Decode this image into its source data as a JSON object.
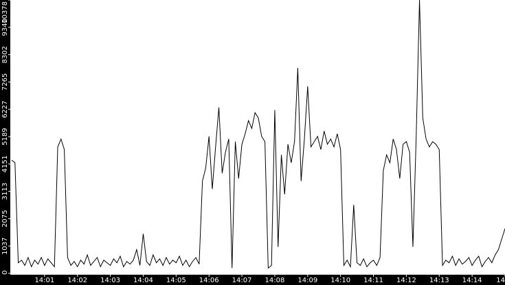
{
  "chart_data": {
    "type": "line",
    "color": "#000000",
    "x": [
      0,
      0.1,
      0.2,
      0.3,
      0.4,
      0.5,
      0.6,
      0.7,
      0.8,
      0.9,
      1,
      1.1,
      1.2,
      1.3,
      1.4,
      1.5,
      1.6,
      1.7,
      1.8,
      1.9,
      2,
      2.1,
      2.2,
      2.3,
      2.4,
      2.5,
      2.6,
      2.7,
      2.8,
      2.9,
      3,
      3.1,
      3.2,
      3.3,
      3.4,
      3.5,
      3.6,
      3.7,
      3.8,
      3.9,
      4,
      4.1,
      4.2,
      4.3,
      4.4,
      4.5,
      4.6,
      4.7,
      4.8,
      4.9,
      5,
      5.1,
      5.2,
      5.3,
      5.4,
      5.5,
      5.6,
      5.7,
      5.8,
      5.9,
      6,
      6.1,
      6.2,
      6.3,
      6.4,
      6.5,
      6.6,
      6.7,
      6.8,
      6.9,
      7,
      7.1,
      7.2,
      7.3,
      7.4,
      7.5,
      7.6,
      7.7,
      7.8,
      7.9,
      8,
      8.1,
      8.2,
      8.3,
      8.4,
      8.5,
      8.6,
      8.7,
      8.8,
      8.9,
      9,
      9.1,
      9.2,
      9.3,
      9.4,
      9.5,
      9.6,
      9.7,
      9.8,
      9.9,
      10,
      10.1,
      10.2,
      10.3,
      10.4,
      10.5,
      10.6,
      10.7,
      10.8,
      10.9,
      11,
      11.1,
      11.2,
      11.3,
      11.4,
      11.5,
      11.6,
      11.7,
      11.8,
      11.9,
      12,
      12.1,
      12.2,
      12.3,
      12.4,
      12.5,
      12.6,
      12.7,
      12.8,
      12.9,
      13,
      13.1,
      13.2,
      13.3,
      13.4,
      13.5,
      13.6,
      13.7,
      13.8,
      13.9,
      14,
      14.1,
      14.2,
      14.3,
      14.4,
      14.5,
      14.6,
      14.7,
      14.8,
      14.9,
      15
    ],
    "values": [
      4300,
      4200,
      400,
      500,
      300,
      600,
      250,
      500,
      350,
      600,
      300,
      550,
      400,
      250,
      4800,
      5100,
      4700,
      600,
      300,
      450,
      250,
      500,
      350,
      700,
      300,
      450,
      600,
      250,
      500,
      400,
      300,
      550,
      400,
      650,
      250,
      450,
      350,
      500,
      900,
      300,
      1500,
      450,
      300,
      700,
      400,
      550,
      300,
      600,
      350,
      500,
      400,
      650,
      300,
      500,
      250,
      450,
      600,
      350,
      3500,
      4000,
      5200,
      3200,
      4800,
      6300,
      3800,
      4600,
      5100,
      200,
      5000,
      3600,
      4900,
      5300,
      5800,
      5500,
      6100,
      5900,
      5200,
      5000,
      200,
      300,
      6200,
      1000,
      4500,
      3000,
      4900,
      4200,
      5000,
      7800,
      3500,
      5100,
      7100,
      4800,
      5000,
      5200,
      4700,
      5400,
      4900,
      5100,
      4800,
      5300,
      4700,
      300,
      500,
      250,
      2600,
      400,
      300,
      550,
      250,
      400,
      500,
      300,
      600,
      3900,
      4500,
      4200,
      5100,
      4700,
      3600,
      4900,
      5000,
      4600,
      1000,
      5200,
      10378,
      5900,
      5100,
      4800,
      5000,
      4900,
      4700,
      300,
      500,
      400,
      650,
      300,
      550,
      350,
      450,
      600,
      300,
      500,
      650,
      250,
      450,
      600,
      400,
      700,
      900,
      1300,
      1700
    ],
    "xlim": [
      0,
      15
    ],
    "xticks": [
      {
        "value": 1,
        "label": "14:01"
      },
      {
        "value": 2,
        "label": "14:02"
      },
      {
        "value": 3,
        "label": "14:03"
      },
      {
        "value": 4,
        "label": "14:04"
      },
      {
        "value": 5,
        "label": "14:05"
      },
      {
        "value": 6,
        "label": "14:06"
      },
      {
        "value": 7,
        "label": "14:07"
      },
      {
        "value": 8,
        "label": "14:08"
      },
      {
        "value": 9,
        "label": "14:09"
      },
      {
        "value": 10,
        "label": "14:10"
      },
      {
        "value": 11,
        "label": "14:11"
      },
      {
        "value": 12,
        "label": "14:12"
      },
      {
        "value": 13,
        "label": "14:13"
      },
      {
        "value": 14,
        "label": "14:14"
      },
      {
        "value": 15,
        "label": "14"
      }
    ],
    "ylim": [
      0,
      10378
    ],
    "yticks": [
      0,
      1037,
      2075,
      3113,
      4151,
      5189,
      6227,
      7265,
      8302,
      9340,
      10378
    ]
  }
}
